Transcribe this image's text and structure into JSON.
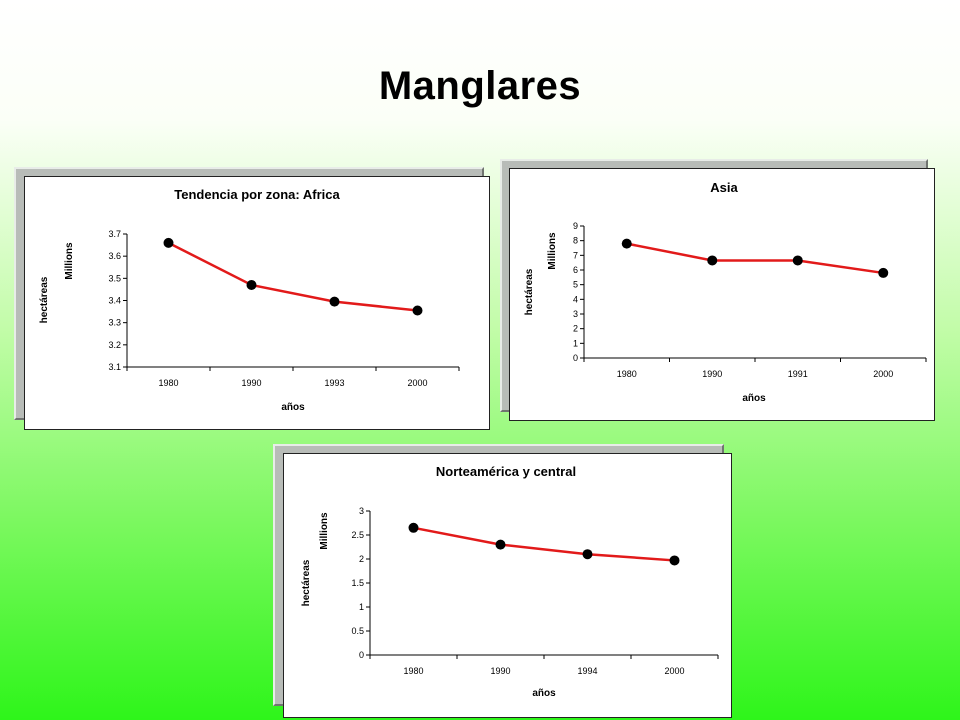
{
  "slide": {
    "title": "Manglares"
  },
  "colors": {
    "line": "#e21a1a",
    "marker": "#000000",
    "axis": "#000000"
  },
  "chart_data": [
    {
      "type": "line",
      "title": "Tendencia por zona: Africa",
      "xlabel": "años",
      "ylabel": "hectáreas",
      "yunit": "Millions",
      "categories": [
        "1980",
        "1990",
        "1993",
        "2000"
      ],
      "values": [
        3.66,
        3.47,
        3.395,
        3.355
      ],
      "ylim": [
        3.1,
        3.7
      ],
      "yticks": [
        "3.1",
        "3.2",
        "3.3",
        "3.4",
        "3.5",
        "3.6",
        "3.7"
      ],
      "grid": false,
      "legend": "none"
    },
    {
      "type": "line",
      "title": "Asia",
      "xlabel": "años",
      "ylabel": "hectáreas",
      "yunit": "Millions",
      "categories": [
        "1980",
        "1990",
        "1991",
        "2000"
      ],
      "values": [
        7.8,
        6.65,
        6.65,
        5.8
      ],
      "ylim": [
        0,
        9
      ],
      "yticks": [
        "0",
        "1",
        "2",
        "3",
        "4",
        "5",
        "6",
        "7",
        "8",
        "9"
      ],
      "grid": false,
      "legend": "none"
    },
    {
      "type": "line",
      "title": "Norteamérica y central",
      "xlabel": "años",
      "ylabel": "hectáreas",
      "yunit": "Millions",
      "categories": [
        "1980",
        "1990",
        "1994",
        "2000"
      ],
      "values": [
        2.65,
        2.3,
        2.1,
        1.97
      ],
      "ylim": [
        0,
        3
      ],
      "yticks": [
        "0",
        "0.5",
        "1",
        "1.5",
        "2",
        "2.5",
        "3"
      ],
      "grid": false,
      "legend": "none"
    }
  ]
}
